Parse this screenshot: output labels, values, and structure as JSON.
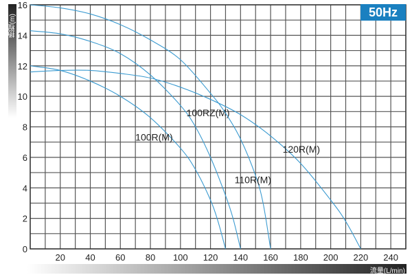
{
  "chart_data": {
    "type": "line",
    "xlabel": "流量(L/min)",
    "ylabel": "扬程(m)",
    "badge": "50Hz",
    "xlim": [
      0,
      250
    ],
    "ylim": [
      0,
      16
    ],
    "grid": true,
    "xticks": [
      20,
      40,
      60,
      80,
      100,
      120,
      140,
      160,
      180,
      200,
      220,
      240
    ],
    "yticks": [
      0,
      2,
      4,
      6,
      8,
      10,
      12,
      14,
      16
    ],
    "line_color": "#3a9ad0",
    "series": [
      {
        "name": "100R(M)",
        "label_at": [
          70,
          7.1
        ],
        "points": [
          [
            0,
            12
          ],
          [
            20,
            11.7
          ],
          [
            40,
            11
          ],
          [
            60,
            10
          ],
          [
            80,
            8.6
          ],
          [
            100,
            6.6
          ],
          [
            110,
            5.2
          ],
          [
            120,
            3.2
          ],
          [
            125,
            1.8
          ],
          [
            130,
            0
          ]
        ]
      },
      {
        "name": "100RZ(M)",
        "label_at": [
          104,
          8.7
        ],
        "points": [
          [
            0,
            14.3
          ],
          [
            20,
            14.1
          ],
          [
            40,
            13.6
          ],
          [
            60,
            12.8
          ],
          [
            80,
            11.4
          ],
          [
            100,
            9.4
          ],
          [
            110,
            8
          ],
          [
            120,
            6
          ],
          [
            130,
            3.5
          ],
          [
            135,
            2
          ],
          [
            140,
            0
          ]
        ]
      },
      {
        "name": "110R(M)",
        "label_at": [
          136,
          4.3
        ],
        "points": [
          [
            0,
            16
          ],
          [
            20,
            15.8
          ],
          [
            40,
            15.4
          ],
          [
            60,
            14.7
          ],
          [
            80,
            13.7
          ],
          [
            100,
            12.4
          ],
          [
            120,
            10.2
          ],
          [
            130,
            8.9
          ],
          [
            140,
            7.2
          ],
          [
            150,
            4.8
          ],
          [
            155,
            3
          ],
          [
            160,
            0
          ]
        ]
      },
      {
        "name": "120R(M)",
        "label_at": [
          168,
          6.3
        ],
        "points": [
          [
            0,
            11.6
          ],
          [
            20,
            11.7
          ],
          [
            40,
            11.7
          ],
          [
            60,
            11.5
          ],
          [
            80,
            11.2
          ],
          [
            100,
            10.6
          ],
          [
            120,
            9.8
          ],
          [
            140,
            8.8
          ],
          [
            160,
            7.4
          ],
          [
            180,
            5.6
          ],
          [
            200,
            3.2
          ],
          [
            210,
            1.8
          ],
          [
            220,
            0
          ]
        ]
      }
    ]
  }
}
